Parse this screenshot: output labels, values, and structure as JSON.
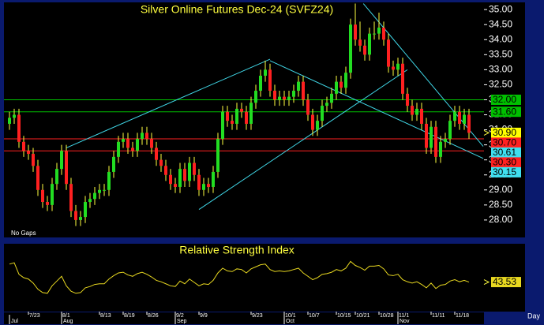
{
  "chart_data": [
    {
      "type": "candlestick",
      "title": "Silver Online Futures Dec-24 (SVFZ24)",
      "note": "No Gaps",
      "x_label": "Day",
      "up_color": "#22dd22",
      "down_color": "#ff2020",
      "wick_color": "#ffff40",
      "ylim": [
        27.42,
        35.24
      ],
      "yticks": [
        {
          "value": 28,
          "label": "28.00"
        },
        {
          "value": 28.5,
          "label": "28.50"
        },
        {
          "value": 29,
          "label": "29.00"
        },
        {
          "value": 29.5,
          "label": "29.50"
        },
        {
          "value": 30,
          "label": "30.00"
        },
        {
          "value": 30.5,
          "label": "30.50"
        },
        {
          "value": 31,
          "label": "31.00"
        },
        {
          "value": 31.5,
          "label": "31.50"
        },
        {
          "value": 32,
          "label": "32.00"
        },
        {
          "value": 32.5,
          "label": "32.50"
        },
        {
          "value": 33,
          "label": "33.00"
        },
        {
          "value": 33.5,
          "label": "33.50"
        },
        {
          "value": 34,
          "label": "34.00"
        },
        {
          "value": 34.5,
          "label": "34.50"
        },
        {
          "value": 35,
          "label": "35.00"
        }
      ],
      "xticks": [
        {
          "value": 4,
          "label": "7/23"
        },
        {
          "value": 11,
          "label": "8/1"
        },
        {
          "value": 19,
          "label": "8/13"
        },
        {
          "value": 24,
          "label": "8/19"
        },
        {
          "value": 29,
          "label": "8/26"
        },
        {
          "value": 35,
          "label": "9/2"
        },
        {
          "value": 40,
          "label": "9/9"
        },
        {
          "value": 51,
          "label": "9/23"
        },
        {
          "value": 58,
          "label": "10/1"
        },
        {
          "value": 63,
          "label": "10/7"
        },
        {
          "value": 69,
          "label": "10/15"
        },
        {
          "value": 73,
          "label": "10/21"
        },
        {
          "value": 78,
          "label": "10/28"
        },
        {
          "value": 82,
          "label": "11/1"
        },
        {
          "value": 89,
          "label": "11/11"
        },
        {
          "value": 94,
          "label": "11/18"
        }
      ],
      "month_ticks": [
        {
          "value": 0,
          "label": "Jul"
        },
        {
          "value": 11,
          "label": "Aug"
        },
        {
          "value": 35,
          "label": "Sep"
        },
        {
          "value": 58,
          "label": "Oct"
        },
        {
          "value": 82,
          "label": "Nov"
        }
      ],
      "open": [
        31.2,
        31.4,
        31.5,
        30.6,
        30.3,
        30.2,
        29.8,
        29.0,
        28.6,
        28.5,
        29.2,
        29.7,
        30.3,
        29.2,
        28.3,
        28.0,
        28.1,
        28.6,
        28.7,
        28.9,
        29.0,
        29.0,
        29.6,
        30.1,
        30.6,
        30.7,
        30.4,
        30.3,
        30.7,
        30.9,
        30.7,
        30.4,
        30.0,
        29.8,
        29.5,
        29.2,
        29.1,
        29.7,
        29.3,
        29.9,
        29.5,
        29.0,
        29.2,
        29.1,
        29.6,
        30.7,
        31.6,
        31.3,
        31.2,
        31.7,
        31.6,
        31.2,
        31.9,
        32.3,
        32.8,
        33.0,
        32.3,
        32.0,
        32.1,
        32.0,
        32.1,
        32.3,
        32.6,
        32.0,
        31.5,
        31.0,
        31.3,
        31.8,
        31.9,
        32.2,
        32.6,
        32.4,
        32.9,
        34.5,
        34.0,
        33.8,
        33.5,
        34.2,
        34.2,
        34.4,
        34.0,
        33.1,
        33.0,
        33.2,
        32.2,
        31.8,
        31.5,
        31.7,
        31.2,
        30.4,
        31.1,
        30.1,
        30.6,
        30.7,
        31.3,
        31.6,
        31.2,
        31.5
      ],
      "high": [
        31.6,
        31.7,
        31.7,
        30.8,
        30.5,
        30.4,
        30.0,
        29.2,
        28.8,
        29.4,
        29.9,
        30.5,
        30.5,
        29.4,
        28.5,
        28.3,
        28.8,
        28.9,
        29.1,
        29.2,
        29.2,
        29.8,
        30.3,
        30.8,
        30.9,
        30.9,
        30.6,
        30.9,
        31.1,
        31.1,
        30.9,
        30.6,
        30.2,
        30.0,
        29.7,
        29.4,
        29.9,
        29.9,
        30.1,
        30.1,
        29.7,
        29.4,
        29.4,
        29.8,
        30.9,
        31.8,
        31.8,
        31.5,
        31.9,
        31.9,
        31.8,
        32.1,
        32.5,
        33.0,
        33.3,
        33.2,
        32.5,
        32.3,
        32.3,
        32.3,
        32.5,
        32.8,
        32.8,
        32.2,
        31.7,
        31.5,
        32.0,
        32.1,
        32.4,
        32.8,
        32.8,
        33.1,
        34.7,
        35.2,
        34.6,
        34.0,
        34.4,
        34.6,
        34.9,
        34.6,
        34.2,
        33.3,
        33.4,
        33.4,
        32.4,
        32.0,
        31.9,
        31.9,
        31.4,
        31.3,
        31.3,
        30.8,
        30.9,
        31.5,
        31.8,
        31.8,
        31.7,
        31.7
      ],
      "low": [
        31.0,
        31.2,
        30.4,
        30.1,
        30.0,
        29.6,
        28.8,
        28.4,
        28.3,
        28.3,
        29.0,
        29.5,
        29.0,
        28.1,
        27.8,
        27.8,
        27.9,
        28.4,
        28.5,
        28.7,
        28.8,
        28.8,
        29.4,
        29.9,
        30.4,
        30.2,
        30.1,
        30.1,
        30.5,
        30.5,
        30.2,
        29.8,
        29.6,
        29.3,
        29.0,
        28.9,
        28.9,
        29.1,
        29.1,
        29.3,
        28.8,
        28.8,
        28.9,
        28.9,
        29.4,
        30.5,
        31.1,
        31.0,
        31.0,
        31.4,
        31.0,
        31.0,
        31.7,
        32.1,
        32.6,
        32.1,
        31.8,
        31.8,
        31.8,
        31.8,
        31.9,
        32.1,
        31.8,
        31.3,
        30.8,
        30.8,
        31.1,
        31.6,
        31.7,
        32.0,
        32.2,
        32.2,
        32.7,
        33.8,
        33.6,
        33.3,
        33.3,
        34.0,
        34.0,
        33.8,
        32.9,
        32.8,
        32.8,
        32.0,
        31.6,
        31.3,
        31.3,
        31.0,
        30.2,
        30.2,
        29.9,
        29.9,
        30.4,
        30.5,
        31.1,
        31.0,
        31.0,
        30.7
      ],
      "close": [
        31.4,
        31.5,
        30.6,
        30.3,
        30.2,
        29.8,
        29.0,
        28.6,
        28.5,
        29.2,
        29.7,
        30.3,
        29.2,
        28.3,
        28.0,
        28.1,
        28.6,
        28.7,
        28.9,
        29.0,
        29.0,
        29.6,
        30.1,
        30.6,
        30.7,
        30.4,
        30.3,
        30.7,
        30.9,
        30.7,
        30.4,
        30.0,
        29.8,
        29.5,
        29.2,
        29.1,
        29.7,
        29.3,
        29.9,
        29.5,
        29.0,
        29.2,
        29.1,
        29.6,
        30.7,
        31.6,
        31.3,
        31.2,
        31.7,
        31.6,
        31.2,
        31.9,
        32.3,
        32.8,
        33.0,
        32.3,
        32.0,
        32.1,
        32.0,
        32.1,
        32.3,
        32.6,
        32.0,
        31.5,
        31.0,
        31.3,
        31.8,
        31.9,
        32.2,
        32.6,
        32.4,
        32.9,
        34.5,
        34.0,
        33.8,
        33.5,
        34.2,
        34.2,
        34.4,
        34.0,
        33.1,
        33.0,
        33.2,
        32.2,
        31.8,
        31.5,
        31.7,
        31.2,
        30.4,
        31.1,
        30.1,
        30.6,
        30.7,
        31.3,
        31.6,
        31.2,
        31.5,
        30.9
      ],
      "levels": [
        {
          "value": 32.0,
          "label": "32.00",
          "color": "#00c000"
        },
        {
          "value": 31.6,
          "label": "31.60",
          "color": "#00c000"
        },
        {
          "value": 30.7,
          "label": "30.70",
          "color": "#ff2020"
        },
        {
          "value": 30.3,
          "label": "30.30",
          "color": "#ff2020"
        }
      ],
      "markers": [
        {
          "value": 30.9,
          "label": "30.90",
          "color": "#ffff00"
        },
        {
          "value": 30.61,
          "label": "30.61",
          "color": "#40e0f0"
        },
        {
          "value": 30.15,
          "label": "30.15",
          "color": "#40e0f0"
        }
      ],
      "trend_color": "#40d8e8",
      "trendlines": [
        {
          "from": [
            12,
            30.4
          ],
          "to": [
            55,
            33.35
          ]
        },
        {
          "from": [
            40,
            28.35
          ],
          "to": [
            84,
            33.0
          ]
        },
        {
          "from": [
            55,
            33.3
          ],
          "to": [
            100,
            30.05
          ]
        },
        {
          "from": [
            74.7,
            35.2
          ],
          "to": [
            100,
            30.45
          ]
        }
      ]
    },
    {
      "type": "line",
      "title": "Relative Strength Index",
      "color": "#e8d820",
      "ylim": [
        0,
        100
      ],
      "values": [
        70,
        72,
        55,
        50,
        48,
        42,
        33,
        28,
        27,
        38,
        45,
        52,
        38,
        30,
        27,
        28,
        35,
        37,
        40,
        41,
        41,
        48,
        53,
        57,
        58,
        54,
        52,
        56,
        58,
        55,
        51,
        46,
        44,
        41,
        38,
        37,
        45,
        41,
        48,
        43,
        38,
        41,
        40,
        46,
        57,
        64,
        60,
        59,
        63,
        62,
        57,
        63,
        66,
        69,
        70,
        62,
        59,
        60,
        59,
        60,
        62,
        64,
        57,
        52,
        47,
        50,
        55,
        56,
        58,
        62,
        60,
        64,
        74,
        68,
        65,
        61,
        67,
        67,
        68,
        63,
        54,
        53,
        55,
        47,
        44,
        42,
        44,
        40,
        35,
        42,
        34,
        39,
        40,
        45,
        47,
        44,
        46,
        43.53
      ],
      "last_label": "43.53"
    }
  ]
}
